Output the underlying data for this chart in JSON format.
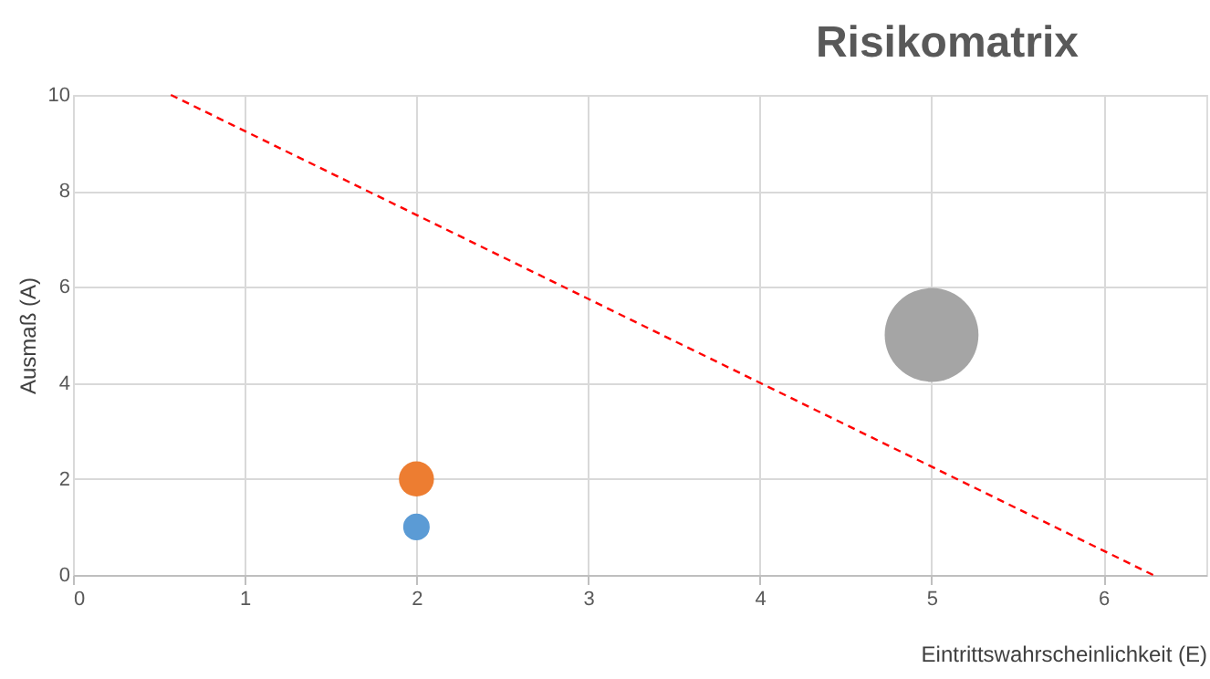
{
  "chart_data": {
    "type": "bubble",
    "title": "Risikomatrix",
    "xlabel": "Eintrittswahrscheinlichkeit (E)",
    "ylabel": "Ausmaß (A)",
    "xlim": [
      0,
      6.6
    ],
    "xticks": [
      0,
      1,
      2,
      3,
      4,
      5,
      6
    ],
    "ylim": [
      0,
      10
    ],
    "yticks": [
      0,
      2,
      4,
      6,
      8,
      10
    ],
    "grid": true,
    "legend": false,
    "series": [
      {
        "x": [
          2,
          2,
          5
        ],
        "values": [
          1,
          2,
          5
        ],
        "sizes": [
          0.08,
          0.14,
          1
        ],
        "colors": [
          "#5b9bd5",
          "#ed7d31",
          "#a5a5a5"
        ]
      },
      {
        "type": "line",
        "x": [
          0.57,
          6.29
        ],
        "values": [
          10,
          0
        ],
        "color": "#ff0000",
        "line_style": "dashed",
        "marker": "none"
      }
    ]
  }
}
